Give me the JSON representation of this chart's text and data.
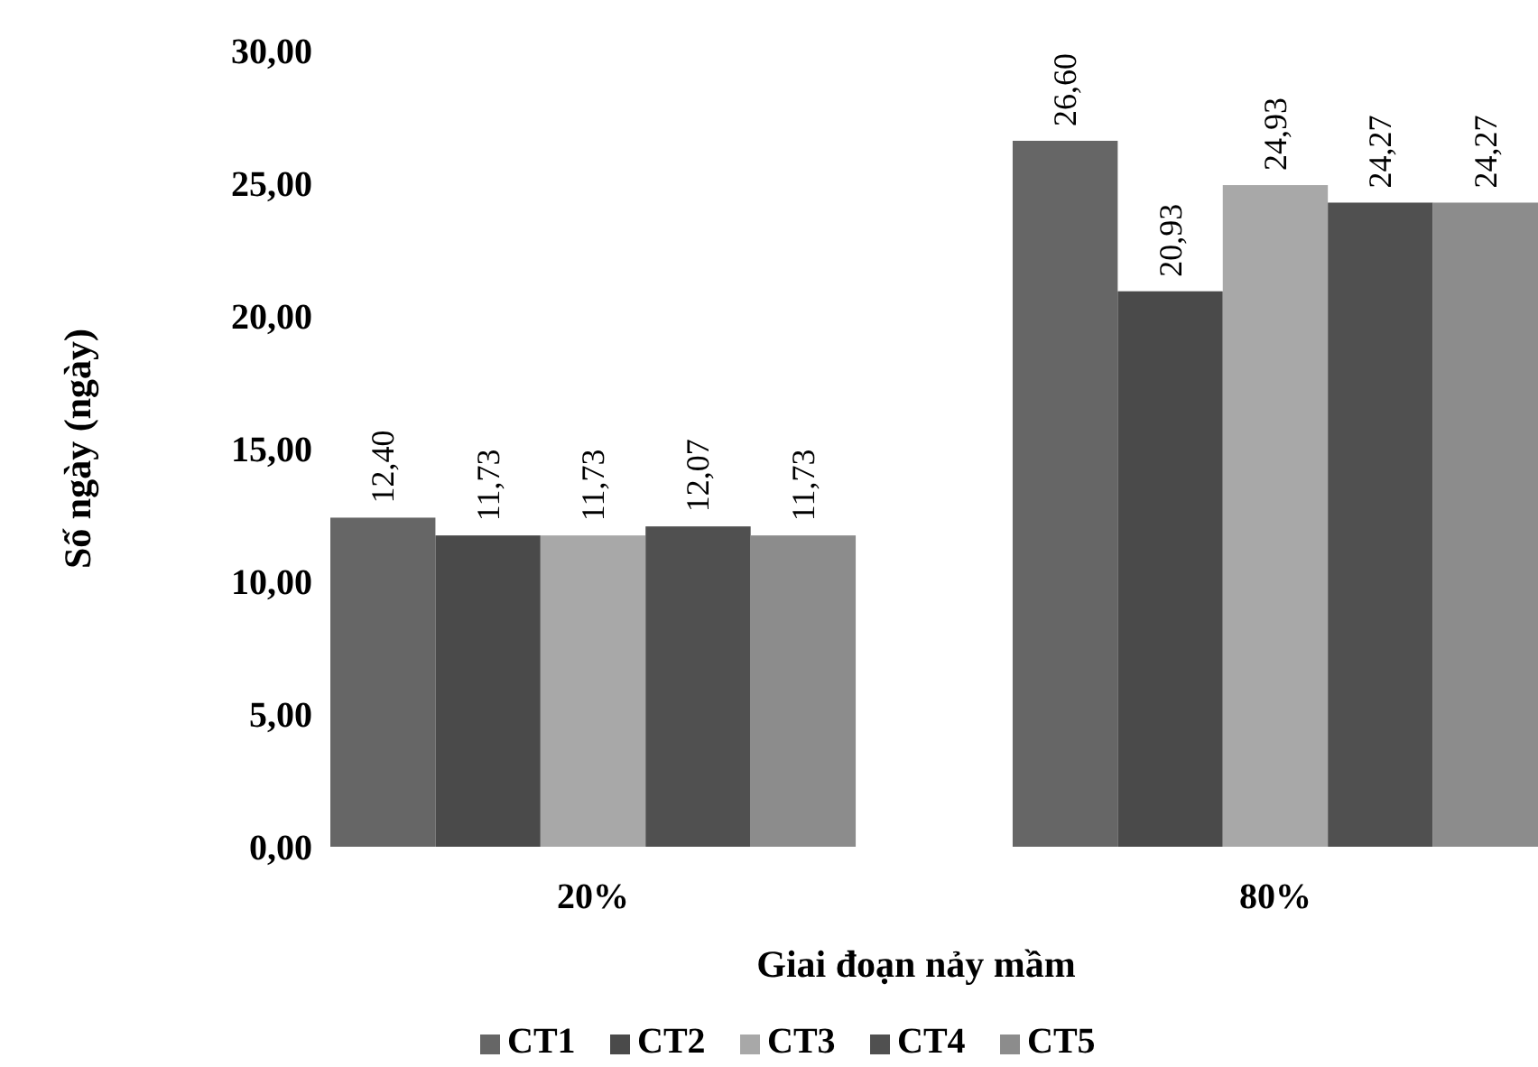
{
  "chart_data": {
    "type": "bar",
    "xlabel": "Giai đoạn nảy mầm",
    "ylabel": "Số ngày (ngày)",
    "categories": [
      "20%",
      "80%"
    ],
    "series": [
      {
        "name": "CT1",
        "color": "#666666",
        "values": [
          12.4,
          26.6
        ],
        "value_labels": [
          "12,40",
          "26,60"
        ]
      },
      {
        "name": "CT2",
        "color": "#4a4a4a",
        "values": [
          11.73,
          20.93
        ],
        "value_labels": [
          "11,73",
          "20,93"
        ]
      },
      {
        "name": "CT3",
        "color": "#a8a8a8",
        "values": [
          11.73,
          24.93
        ],
        "value_labels": [
          "11,73",
          "24,93"
        ]
      },
      {
        "name": "CT4",
        "color": "#505050",
        "values": [
          12.07,
          24.27
        ],
        "value_labels": [
          "12,07",
          "24,27"
        ]
      },
      {
        "name": "CT5",
        "color": "#8c8c8c",
        "values": [
          11.73,
          24.27
        ],
        "value_labels": [
          "11,73",
          "24,27"
        ]
      }
    ],
    "ylim": [
      0,
      30
    ],
    "yticks": [
      {
        "value": 0,
        "label": "0,00"
      },
      {
        "value": 5,
        "label": "5,00"
      },
      {
        "value": 10,
        "label": "10,00"
      },
      {
        "value": 15,
        "label": "15,00"
      },
      {
        "value": 20,
        "label": "20,00"
      },
      {
        "value": 25,
        "label": "25,00"
      },
      {
        "value": 30,
        "label": "30,00"
      }
    ],
    "legend": "bottom",
    "grid": false
  }
}
